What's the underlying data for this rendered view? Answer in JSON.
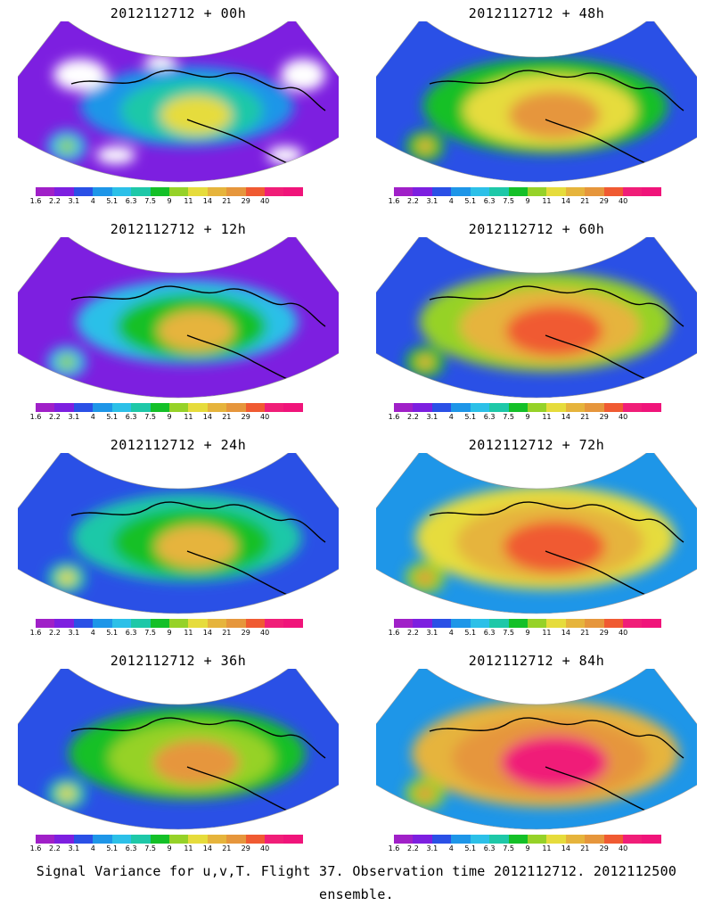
{
  "footer_caption": "Signal Variance for u,v,T. Flight 37. Observation time 2012112712. 2012112500 ensemble.",
  "colorbar": {
    "levels": [
      "1.6",
      "2.2",
      "3.1",
      "4",
      "5.1",
      "6.3",
      "7.5",
      "9",
      "11",
      "14",
      "21",
      "29",
      "40"
    ],
    "colors": [
      "#a020c8",
      "#7d1fe0",
      "#2a50e6",
      "#1e96e8",
      "#2cc0e8",
      "#1ec8a8",
      "#14c028",
      "#96d228",
      "#e6dc3c",
      "#e6b43c",
      "#e6963c",
      "#f05a32",
      "#f01e78",
      "#f0147a"
    ]
  },
  "panels": [
    {
      "title": "2012112712 + 00h",
      "lead_hours": 0
    },
    {
      "title": "2012112712 + 48h",
      "lead_hours": 48
    },
    {
      "title": "2012112712 + 12h",
      "lead_hours": 12
    },
    {
      "title": "2012112712 + 60h",
      "lead_hours": 60
    },
    {
      "title": "2012112712 + 24h",
      "lead_hours": 24
    },
    {
      "title": "2012112712 + 72h",
      "lead_hours": 72
    },
    {
      "title": "2012112712 + 36h",
      "lead_hours": 36
    },
    {
      "title": "2012112712 + 84h",
      "lead_hours": 84
    }
  ]
}
